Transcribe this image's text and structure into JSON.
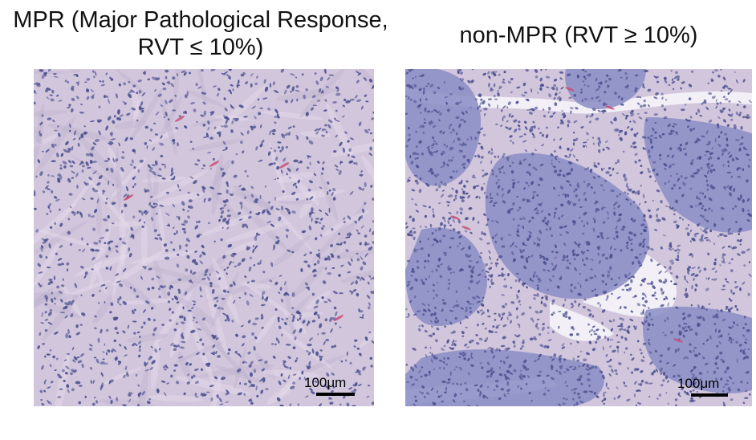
{
  "panels": [
    {
      "title_line1": "MPR (Major Pathological Response,",
      "title_line2": "RVT ≤ 10%)",
      "scale_label": "100μm"
    },
    {
      "title_line1": "non-MPR (RVT ≥ 10%)",
      "scale_label": "100μm"
    }
  ],
  "colors": {
    "stroma": "#d2c6dc",
    "nuclei": "#4a4f8f",
    "tumor_nest": "#8a8cc4",
    "lumen": "#f2eff6",
    "erythrocyte": "#c84a70"
  }
}
